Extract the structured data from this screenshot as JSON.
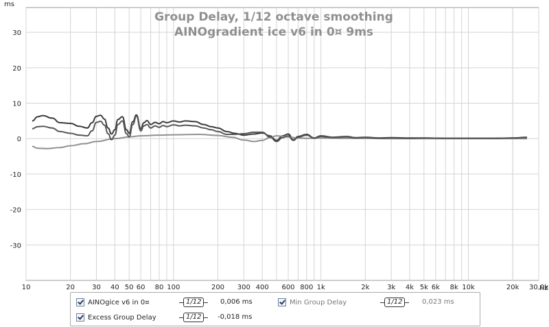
{
  "chart_data": {
    "type": "line",
    "title": "Group Delay, 1/12 octave smoothing",
    "subtitle": "AINOgradient ice v6 in 0¤ 9ms",
    "ylabel": "ms",
    "xlabel": "Hz",
    "x_scale": "log",
    "xlim": [
      10,
      30000
    ],
    "ylim": [
      -40,
      37
    ],
    "grid": true,
    "y_ticks": [
      30,
      20,
      10,
      0,
      -10,
      -20,
      -30
    ],
    "y_tick_labels": [
      "30",
      "20",
      "10",
      "0",
      "-10",
      "-20",
      "-30"
    ],
    "x_ticks": [
      10,
      20,
      30,
      40,
      50,
      60,
      80,
      100,
      200,
      300,
      400,
      600,
      800,
      1000,
      2000,
      3000,
      4000,
      5000,
      6000,
      8000,
      10000,
      20000,
      30000
    ],
    "x_tick_labels": [
      "10",
      "20",
      "30",
      "40",
      "50",
      "60",
      "80",
      "100",
      "200",
      "300",
      "400",
      "600",
      "800",
      "1k",
      "2k",
      "3k",
      "4k",
      "5k",
      "6k",
      "8k",
      "10k",
      "20k",
      "30,0k"
    ],
    "series": [
      {
        "name": "AINOgice v6 in 0¤",
        "color": "#3a3a3a",
        "x": [
          11,
          12,
          13,
          15,
          17,
          20,
          23,
          26,
          28,
          30,
          32,
          34,
          36,
          38,
          40,
          42,
          45,
          48,
          50,
          53,
          56,
          60,
          63,
          66,
          70,
          75,
          80,
          85,
          90,
          100,
          110,
          120,
          140,
          160,
          180,
          200,
          230,
          260,
          300,
          350,
          400,
          450,
          500,
          550,
          600,
          650,
          700,
          800,
          900,
          1000,
          1200,
          1500,
          1700,
          2000,
          2500,
          3000,
          4000,
          5000,
          7000,
          10000,
          15000,
          20000,
          25000
        ],
        "y": [
          5.0,
          6.2,
          6.5,
          5.8,
          4.5,
          4.3,
          3.5,
          3.0,
          4.5,
          6.3,
          6.6,
          5.5,
          3.0,
          1.3,
          2.5,
          5.4,
          6.2,
          2.5,
          1.5,
          4.8,
          6.7,
          2.8,
          4.5,
          5.1,
          4.0,
          4.6,
          4.2,
          4.8,
          4.5,
          5.0,
          4.7,
          5.0,
          4.8,
          4.0,
          3.4,
          3.0,
          2.0,
          1.5,
          1.0,
          1.3,
          1.6,
          0.8,
          -0.5,
          0.8,
          1.3,
          -0.3,
          0.6,
          1.2,
          0.2,
          0.8,
          0.4,
          0.6,
          0.3,
          0.4,
          0.2,
          0.3,
          0.2,
          0.2,
          0.1,
          0.1,
          0.1,
          0.2,
          0.4
        ]
      },
      {
        "name": "Min Group Delay",
        "color": "#8f8f8f",
        "x": [
          11,
          12,
          14,
          17,
          20,
          25,
          30,
          40,
          50,
          60,
          80,
          100,
          150,
          200,
          250,
          300,
          350,
          400,
          450,
          500,
          600,
          700,
          800,
          1000,
          1500,
          2000,
          3000,
          5000,
          10000,
          20000,
          25000
        ],
        "y": [
          -2.2,
          -2.7,
          -2.8,
          -2.5,
          -2.0,
          -1.4,
          -0.8,
          0.0,
          0.5,
          0.8,
          1.0,
          1.1,
          1.2,
          0.9,
          0.4,
          -0.4,
          -0.8,
          -0.5,
          0.3,
          0.8,
          0.5,
          0.2,
          0.1,
          0.2,
          0.1,
          0.1,
          0.0,
          0.0,
          0.0,
          0.0,
          0.0
        ]
      },
      {
        "name": "Excess Group Delay",
        "color": "#555555",
        "x": [
          11,
          12,
          13,
          15,
          17,
          20,
          23,
          26,
          28,
          30,
          32,
          34,
          36,
          38,
          40,
          42,
          45,
          48,
          50,
          53,
          56,
          60,
          63,
          66,
          70,
          75,
          80,
          85,
          90,
          100,
          110,
          120,
          140,
          160,
          180,
          200,
          230,
          260,
          300,
          350,
          400,
          450,
          500,
          550,
          600,
          650,
          700,
          800,
          900,
          1000,
          1200,
          1500,
          1700,
          2000,
          2500,
          3000,
          4000,
          5000,
          7000,
          10000,
          15000,
          20000,
          25000
        ],
        "y": [
          2.8,
          3.4,
          3.5,
          3.0,
          2.0,
          1.5,
          1.0,
          0.8,
          2.2,
          4.6,
          4.9,
          3.8,
          1.4,
          -0.3,
          1.0,
          4.0,
          5.0,
          1.4,
          0.5,
          4.0,
          6.4,
          2.2,
          3.6,
          4.0,
          3.0,
          3.6,
          3.2,
          3.7,
          3.4,
          3.9,
          3.6,
          3.8,
          3.6,
          3.0,
          2.5,
          2.0,
          1.2,
          1.2,
          1.4,
          1.8,
          1.8,
          0.5,
          -0.8,
          0.3,
          0.8,
          -0.5,
          0.4,
          1.0,
          0.1,
          0.6,
          0.3,
          0.5,
          0.2,
          0.3,
          0.1,
          0.2,
          0.1,
          0.2,
          0.1,
          0.1,
          0.1,
          0.2,
          0.3
        ]
      }
    ]
  },
  "legend": {
    "items": [
      {
        "label": "AINOgice v6 in 0¤",
        "checked": true,
        "smoothing": "1/12",
        "value": "0,006 ms"
      },
      {
        "label": "Min Group Delay",
        "checked": true,
        "smoothing": "1/12",
        "value": "0,023 ms"
      },
      {
        "label": "Excess Group Delay",
        "checked": true,
        "smoothing": "1/12",
        "value": "-0,018 ms"
      }
    ]
  }
}
